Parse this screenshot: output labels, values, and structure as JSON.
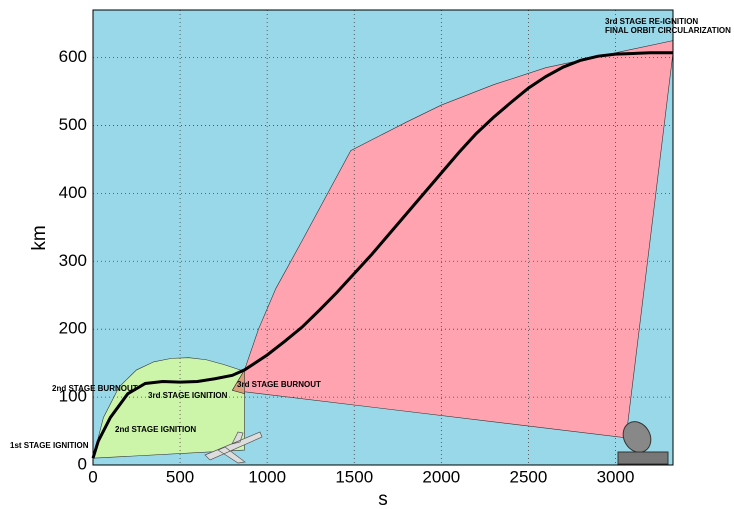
{
  "chart_data": {
    "type": "line",
    "xlabel": "s",
    "ylabel": "km",
    "xlim": [
      0,
      3330
    ],
    "ylim": [
      0,
      670
    ],
    "xticks": [
      0,
      500,
      1000,
      1500,
      2000,
      2500,
      3000
    ],
    "yticks": [
      0,
      100,
      200,
      300,
      400,
      500,
      600
    ],
    "grid": true,
    "background": "#99d8e8",
    "regions": [
      {
        "color": "#ccf5aa",
        "x": [
          0,
          60,
          150,
          250,
          350,
          450,
          550,
          650,
          750,
          870,
          870,
          0
        ],
        "y": [
          10,
          70,
          115,
          140,
          152,
          157,
          158,
          155,
          148,
          138,
          22,
          10
        ]
      },
      {
        "color": "#ffa3b1",
        "x": [
          800,
          870,
          950,
          1050,
          1200,
          1480,
          1800,
          2000,
          2300,
          2600,
          3000,
          3330,
          3330,
          3060,
          800
        ],
        "y": [
          110,
          140,
          200,
          260,
          330,
          463,
          505,
          530,
          560,
          585,
          607,
          625,
          607,
          40,
          110
        ]
      },
      {
        "color": "#d9a07a",
        "x": [
          800,
          870,
          870,
          800
        ],
        "y": [
          110,
          140,
          105,
          110
        ]
      }
    ],
    "series": [
      {
        "color": "#000000",
        "x": [
          0,
          30,
          100,
          200,
          300,
          400,
          500,
          600,
          700,
          800,
          870,
          1000,
          1100,
          1200,
          1300,
          1400,
          1500,
          1600,
          1700,
          1800,
          1900,
          2000,
          2100,
          2200,
          2300,
          2400,
          2500,
          2600,
          2700,
          2800,
          2900,
          3000,
          3100,
          3200,
          3330
        ],
        "values": [
          10,
          35,
          70,
          105,
          120,
          123,
          122,
          123,
          127,
          132,
          140,
          162,
          182,
          203,
          228,
          254,
          282,
          310,
          340,
          370,
          400,
          430,
          460,
          488,
          512,
          534,
          555,
          572,
          586,
          596,
          602,
          605,
          606,
          607,
          607
        ]
      }
    ],
    "annotations": [
      "1st STAGE IGNITION",
      "2nd STAGE IGNITION",
      "2nd STAGE BURNOUT",
      "3rd STAGE IGNITION",
      "3rd STAGE BURNOUT",
      "3rd STAGE RE-IGNITION",
      "FINAL ORBIT CIRCULARIZATION"
    ]
  }
}
